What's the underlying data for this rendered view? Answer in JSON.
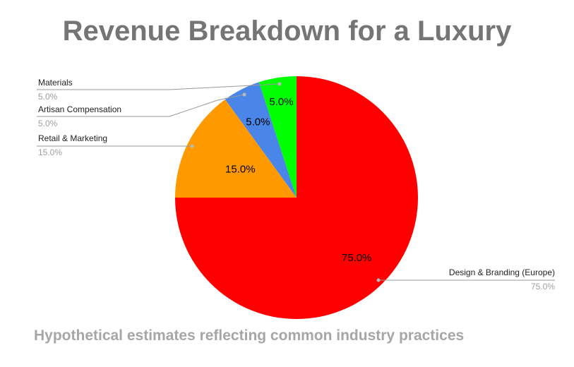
{
  "chart_data": {
    "type": "pie",
    "title": "Revenue Breakdown for a Luxury",
    "subtitle": "Hypothetical estimates reflecting common industry practices",
    "slices": [
      {
        "label": "Design & Branding (Europe)",
        "value": 75.0,
        "percent_label": "75.0%",
        "color": "#ff0000"
      },
      {
        "label": "Retail & Marketing",
        "value": 15.0,
        "percent_label": "15.0%",
        "color": "#ff9900"
      },
      {
        "label": "Artisan Compensation",
        "value": 5.0,
        "percent_label": "5.0%",
        "color": "#4a86e8"
      },
      {
        "label": "Materials",
        "value": 5.0,
        "percent_label": "5.0%",
        "color": "#00ff00"
      }
    ],
    "start": "12 o'clock",
    "direction": "clockwise"
  }
}
